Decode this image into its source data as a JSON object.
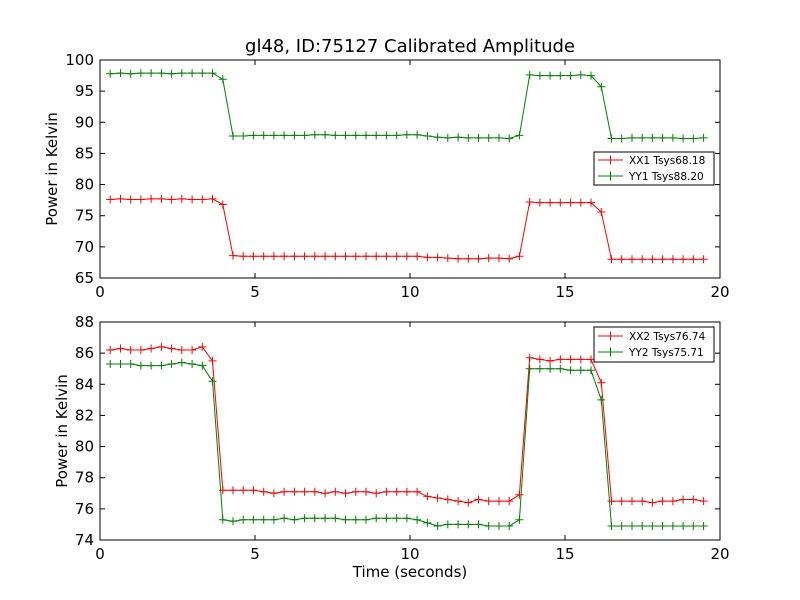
{
  "chart_data": [
    {
      "type": "line",
      "title": "gl48, ID:75127 Calibrated Amplitude",
      "xlabel": "",
      "ylabel": "Power in Kelvin",
      "xlim": [
        0,
        20
      ],
      "ylim": [
        65,
        100
      ],
      "xticks": [
        0,
        5,
        10,
        15,
        20
      ],
      "yticks": [
        65,
        70,
        75,
        80,
        85,
        90,
        95,
        100
      ],
      "grid": false,
      "legend_position": "center-right",
      "marker": "+",
      "x": [
        0.33,
        0.66,
        0.99,
        1.32,
        1.65,
        1.98,
        2.31,
        2.64,
        2.97,
        3.3,
        3.63,
        3.96,
        4.29,
        4.62,
        4.95,
        5.28,
        5.61,
        5.94,
        6.27,
        6.6,
        6.93,
        7.26,
        7.59,
        7.92,
        8.25,
        8.58,
        8.91,
        9.24,
        9.57,
        9.9,
        10.23,
        10.56,
        10.89,
        11.22,
        11.55,
        11.88,
        12.21,
        12.54,
        12.87,
        13.2,
        13.53,
        13.86,
        14.19,
        14.52,
        14.85,
        15.18,
        15.51,
        15.84,
        16.17,
        16.5,
        16.83,
        17.16,
        17.49,
        17.82,
        18.15,
        18.48,
        18.81,
        19.14,
        19.47
      ],
      "series": [
        {
          "name": "XX1 Tsys68.18",
          "color": "#ff0000",
          "values": [
            77.6,
            77.7,
            77.6,
            77.6,
            77.7,
            77.7,
            77.6,
            77.7,
            77.6,
            77.6,
            77.7,
            76.8,
            68.6,
            68.5,
            68.5,
            68.5,
            68.5,
            68.5,
            68.5,
            68.5,
            68.5,
            68.5,
            68.5,
            68.5,
            68.5,
            68.5,
            68.5,
            68.5,
            68.5,
            68.5,
            68.5,
            68.3,
            68.3,
            68.2,
            68.1,
            68.1,
            68.1,
            68.2,
            68.2,
            68.1,
            68.5,
            77.2,
            77.1,
            77.1,
            77.1,
            77.1,
            77.1,
            77.1,
            75.6,
            68.0,
            68.0,
            68.0,
            68.0,
            68.0,
            68.0,
            68.0,
            68.0,
            68.0,
            68.0
          ]
        },
        {
          "name": "YY1 Tsys88.20",
          "color": "#008000",
          "values": [
            97.8,
            97.9,
            97.8,
            97.9,
            97.9,
            97.9,
            97.8,
            97.9,
            97.9,
            97.9,
            97.9,
            96.9,
            87.8,
            87.8,
            87.9,
            87.9,
            87.9,
            87.9,
            87.9,
            87.9,
            88.0,
            88.0,
            87.9,
            87.9,
            87.9,
            87.9,
            87.9,
            87.9,
            87.9,
            88.0,
            88.0,
            87.8,
            87.6,
            87.5,
            87.6,
            87.5,
            87.5,
            87.5,
            87.5,
            87.4,
            87.9,
            97.6,
            97.5,
            97.5,
            97.5,
            97.5,
            97.6,
            97.5,
            95.7,
            87.4,
            87.4,
            87.5,
            87.5,
            87.5,
            87.5,
            87.5,
            87.4,
            87.4,
            87.5
          ]
        }
      ]
    },
    {
      "type": "line",
      "title": "",
      "xlabel": "Time (seconds)",
      "ylabel": "Power in Kelvin",
      "xlim": [
        0,
        20
      ],
      "ylim": [
        74,
        88
      ],
      "xticks": [
        0,
        5,
        10,
        15,
        20
      ],
      "yticks": [
        74,
        76,
        78,
        80,
        82,
        84,
        86,
        88
      ],
      "grid": false,
      "legend_position": "top-right",
      "marker": "+",
      "x": [
        0.33,
        0.66,
        0.99,
        1.32,
        1.65,
        1.98,
        2.31,
        2.64,
        2.97,
        3.3,
        3.63,
        3.96,
        4.29,
        4.62,
        4.95,
        5.28,
        5.61,
        5.94,
        6.27,
        6.6,
        6.93,
        7.26,
        7.59,
        7.92,
        8.25,
        8.58,
        8.91,
        9.24,
        9.57,
        9.9,
        10.23,
        10.56,
        10.89,
        11.22,
        11.55,
        11.88,
        12.21,
        12.54,
        12.87,
        13.2,
        13.53,
        13.86,
        14.19,
        14.52,
        14.85,
        15.18,
        15.51,
        15.84,
        16.17,
        16.5,
        16.83,
        17.16,
        17.49,
        17.82,
        18.15,
        18.48,
        18.81,
        19.14,
        19.47
      ],
      "series": [
        {
          "name": "XX2 Tsys76.74",
          "color": "#ff0000",
          "values": [
            86.2,
            86.3,
            86.2,
            86.2,
            86.3,
            86.4,
            86.3,
            86.2,
            86.2,
            86.4,
            85.5,
            77.2,
            77.2,
            77.2,
            77.2,
            77.1,
            77.0,
            77.1,
            77.1,
            77.1,
            77.1,
            77.0,
            77.1,
            77.0,
            77.1,
            77.1,
            77.0,
            77.1,
            77.1,
            77.1,
            77.1,
            76.8,
            76.7,
            76.6,
            76.5,
            76.4,
            76.6,
            76.5,
            76.5,
            76.5,
            76.9,
            85.7,
            85.6,
            85.5,
            85.6,
            85.6,
            85.6,
            85.6,
            84.1,
            76.5,
            76.5,
            76.5,
            76.5,
            76.4,
            76.5,
            76.5,
            76.6,
            76.6,
            76.5
          ]
        },
        {
          "name": "YY2 Tsys75.71",
          "color": "#008000",
          "values": [
            85.3,
            85.3,
            85.3,
            85.2,
            85.2,
            85.2,
            85.3,
            85.4,
            85.3,
            85.2,
            84.2,
            75.3,
            75.2,
            75.3,
            75.3,
            75.3,
            75.3,
            75.4,
            75.3,
            75.4,
            75.4,
            75.4,
            75.4,
            75.3,
            75.3,
            75.3,
            75.4,
            75.4,
            75.4,
            75.4,
            75.3,
            75.1,
            74.9,
            75.0,
            75.0,
            75.0,
            75.0,
            74.9,
            74.9,
            74.9,
            75.3,
            85.0,
            85.0,
            85.0,
            85.0,
            84.9,
            84.9,
            84.9,
            83.0,
            74.9,
            74.9,
            74.9,
            74.9,
            74.9,
            74.9,
            74.9,
            74.9,
            74.9,
            74.9
          ]
        }
      ]
    }
  ]
}
